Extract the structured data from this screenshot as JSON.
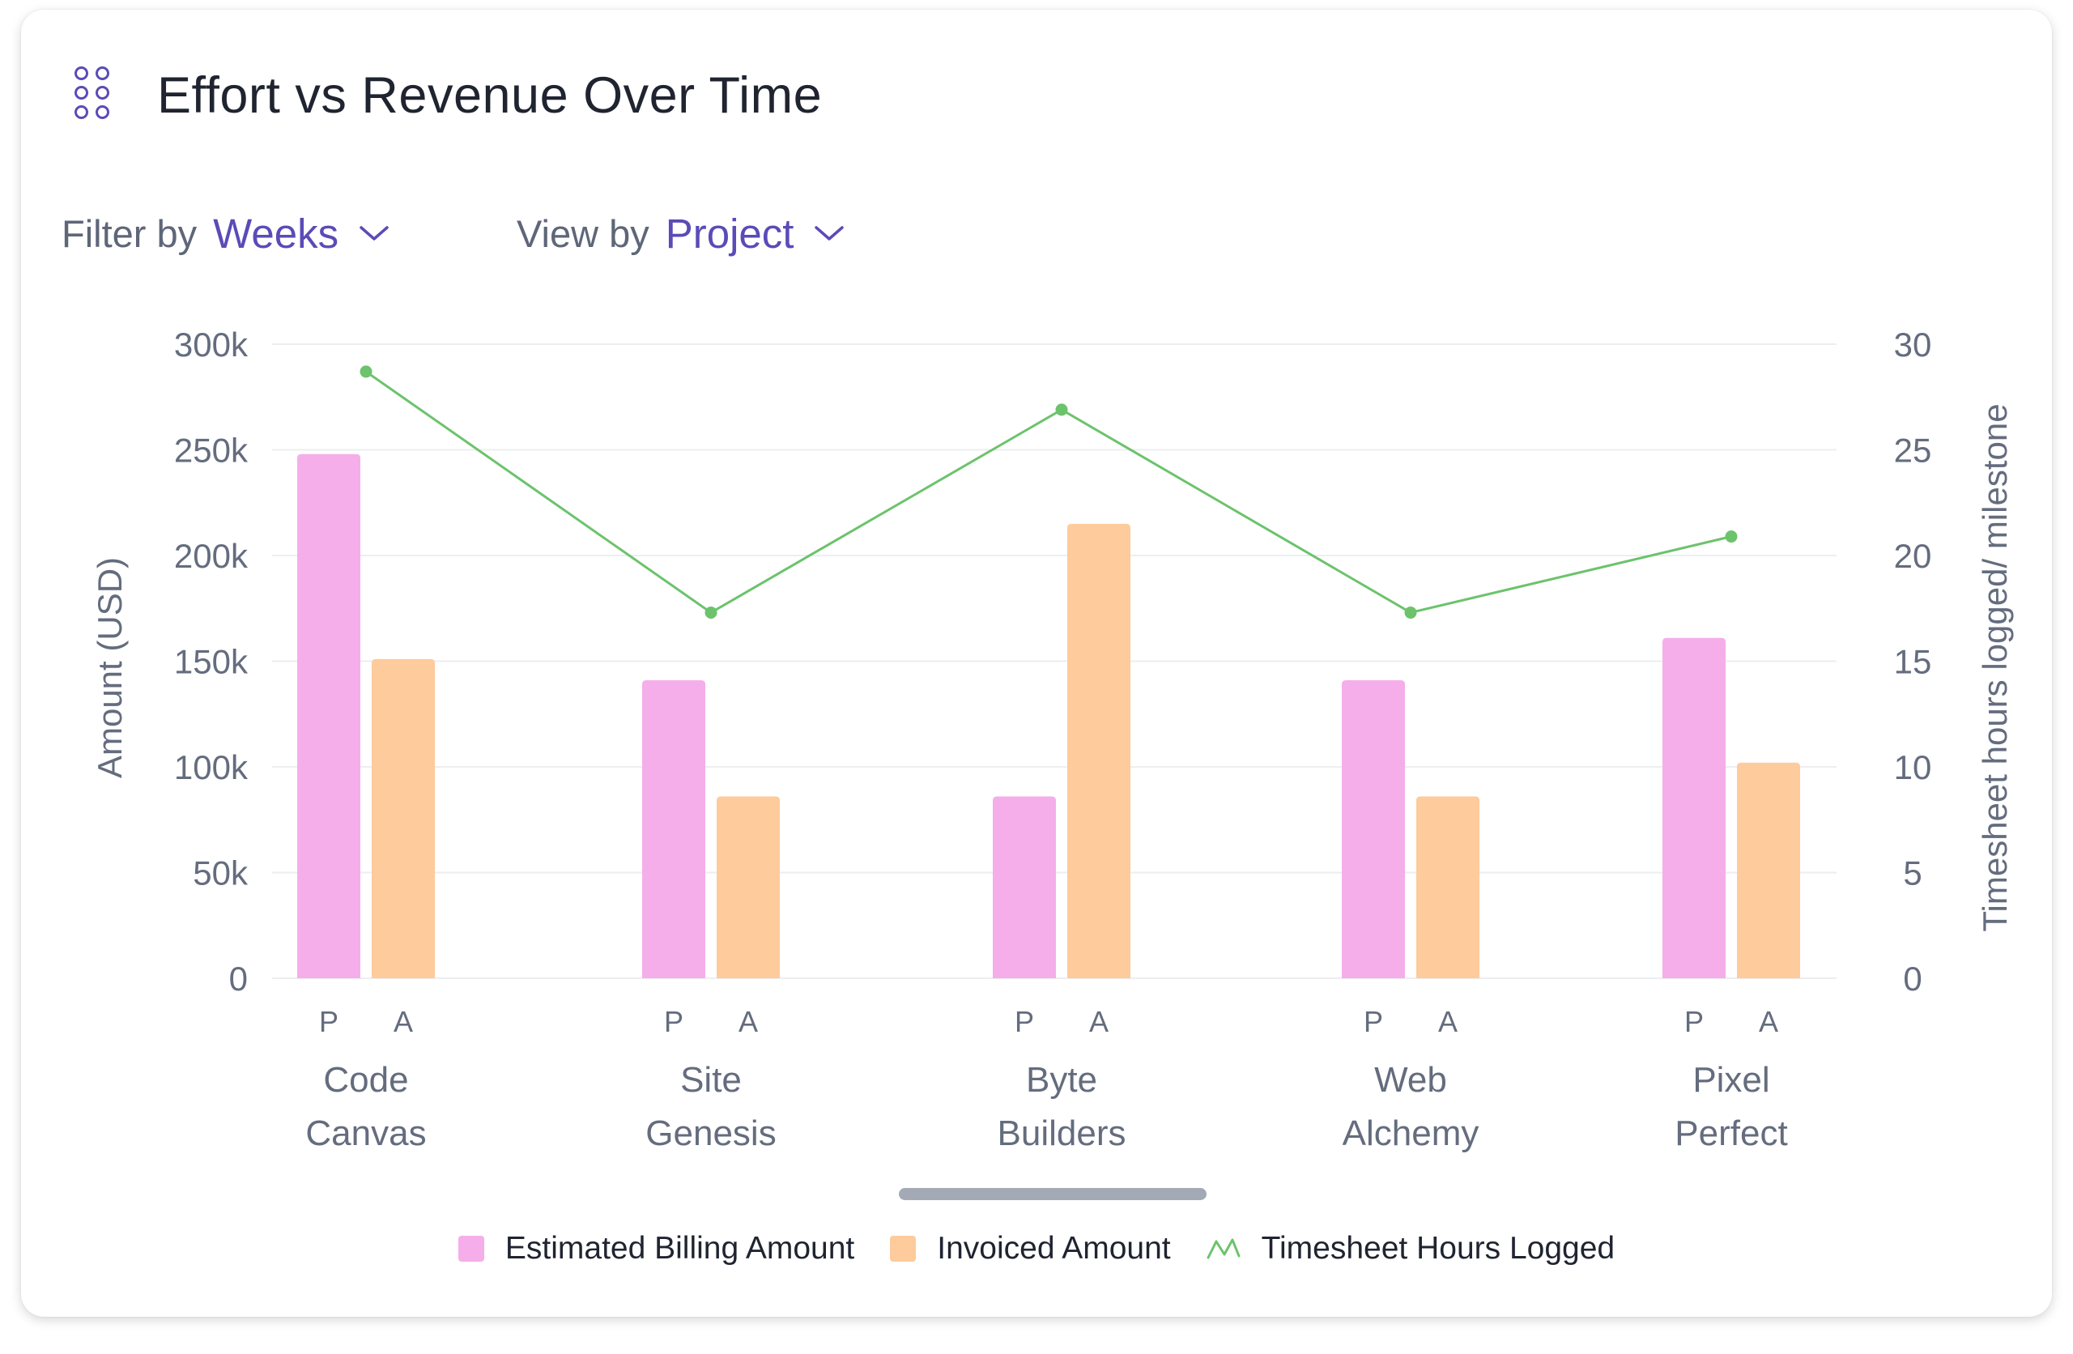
{
  "header": {
    "title": "Effort vs Revenue Over Time",
    "drag_icon": "drag-handle-icon"
  },
  "filters": {
    "filter_label": "Filter by",
    "filter_value": "Weeks",
    "view_label": "View by",
    "view_value": "Project"
  },
  "colors": {
    "accent": "#5B4BB7",
    "estimated": "#F5AEEA",
    "invoiced": "#FDCB9C",
    "hours_line": "#6CC36C",
    "grid": "#ECEEF2",
    "axis_text": "#646C7E"
  },
  "chart_data": {
    "type": "bar",
    "categories": [
      [
        "Code",
        "Canvas"
      ],
      [
        "Site",
        "Genesis"
      ],
      [
        "Byte",
        "Builders"
      ],
      [
        "Web",
        "Alchemy"
      ],
      [
        "Pixel",
        "Perfect"
      ]
    ],
    "sub_labels": [
      "P",
      "A"
    ],
    "series": [
      {
        "name": "Estimated Billing Amount",
        "type": "bar",
        "axis": "left",
        "values": [
          248000,
          141000,
          86000,
          141000,
          161000
        ]
      },
      {
        "name": "Invoiced Amount",
        "type": "bar",
        "axis": "left",
        "values": [
          151000,
          86000,
          215000,
          86000,
          102000
        ]
      },
      {
        "name": "Timesheet Hours Logged",
        "type": "line",
        "axis": "right",
        "values": [
          28.7,
          17.3,
          26.9,
          17.3,
          20.9
        ]
      }
    ],
    "y_left": {
      "label": "Amount (USD)",
      "ylim": [
        0,
        300000
      ],
      "ticks": [
        "0",
        "50k",
        "100k",
        "150k",
        "200k",
        "250k",
        "300k"
      ]
    },
    "y_right": {
      "label": "Timesheet hours logged/ milestone",
      "ylim": [
        0,
        30
      ],
      "ticks": [
        "0",
        "5",
        "10",
        "15",
        "20",
        "25",
        "30"
      ]
    },
    "legend_position": "bottom",
    "grid": true
  }
}
